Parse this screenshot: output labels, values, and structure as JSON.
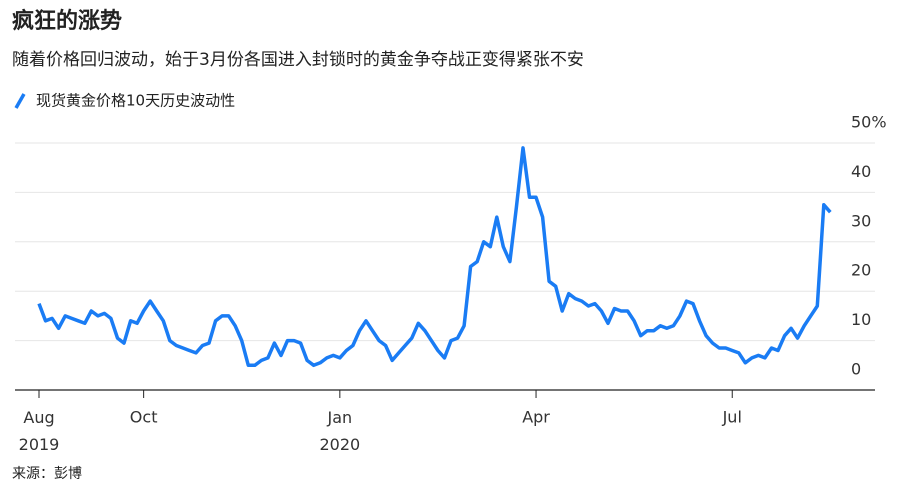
{
  "chart_data": {
    "type": "line",
    "title": "疯狂的涨势",
    "subtitle": "随着价格回归波动，始于3月份各国进入封锁时的黄金争夺战正变得紧张不安",
    "source": "来源：彭博",
    "categories": [
      "Aug\n2019",
      null,
      null,
      null,
      null,
      null,
      null,
      null,
      null,
      null,
      null,
      null,
      null,
      null,
      null,
      null,
      "Oct",
      null,
      null,
      null,
      null,
      null,
      null,
      null,
      null,
      null,
      null,
      null,
      null,
      null,
      null,
      null,
      null,
      null,
      null,
      null,
      null,
      null,
      null,
      null,
      null,
      null,
      null,
      null,
      null,
      null,
      "Jan\n2020",
      null,
      null,
      null,
      null,
      null,
      null,
      null,
      null,
      null,
      null,
      null,
      null,
      null,
      null,
      null,
      null,
      null,
      null,
      null,
      null,
      null,
      null,
      null,
      null,
      null,
      null,
      null,
      null,
      null,
      "Apr",
      null,
      null,
      null,
      null,
      null,
      null,
      null,
      null,
      null,
      null,
      null,
      null,
      null,
      null,
      null,
      null,
      null,
      null,
      null,
      null,
      null,
      null,
      null,
      null,
      null,
      null,
      null,
      null,
      null,
      "Jul",
      null,
      null,
      null,
      null,
      null,
      null,
      null,
      null,
      null,
      null,
      null,
      null,
      null,
      null,
      null
    ],
    "series": [
      {
        "name": "现货黄金价格10天历史波动性",
        "color": "#1a7cf4",
        "values": [
          17.5,
          14,
          14.5,
          12.5,
          15,
          14.5,
          14,
          13.5,
          16,
          15,
          15.5,
          14.5,
          10.5,
          9.5,
          14,
          13.5,
          16,
          18,
          16,
          14,
          10,
          9,
          8.5,
          8,
          7.5,
          9,
          9.5,
          14,
          15,
          15,
          13,
          10,
          5,
          5,
          6,
          6.5,
          9.5,
          7,
          10,
          10,
          9.5,
          6,
          5,
          5.5,
          6.5,
          7,
          6.5,
          8,
          9,
          12,
          14,
          12,
          10,
          9,
          6,
          7.5,
          9,
          10.5,
          13.5,
          12,
          10,
          8,
          6.5,
          10,
          10.5,
          13,
          25,
          26,
          30,
          29,
          35,
          29,
          26,
          37,
          49,
          39,
          39,
          35,
          22,
          21,
          16,
          19.5,
          18.5,
          18,
          17,
          17.5,
          16,
          13.5,
          16.5,
          16,
          16,
          14,
          11,
          12,
          12,
          13,
          12.5,
          13,
          15,
          18,
          17.5,
          14,
          11,
          9.5,
          8.5,
          8.5,
          8,
          7.5,
          5.5,
          6.5,
          7,
          6.5,
          8.5,
          8,
          11,
          12.5,
          10.5,
          13,
          15,
          17,
          37.5,
          36
        ]
      }
    ],
    "ylim": [
      0,
      50
    ],
    "yticks": [
      0,
      10,
      20,
      30,
      {
        "value": 40,
        "label": "40"
      },
      {
        "value": 50,
        "label": "50%"
      }
    ],
    "grid": true
  }
}
